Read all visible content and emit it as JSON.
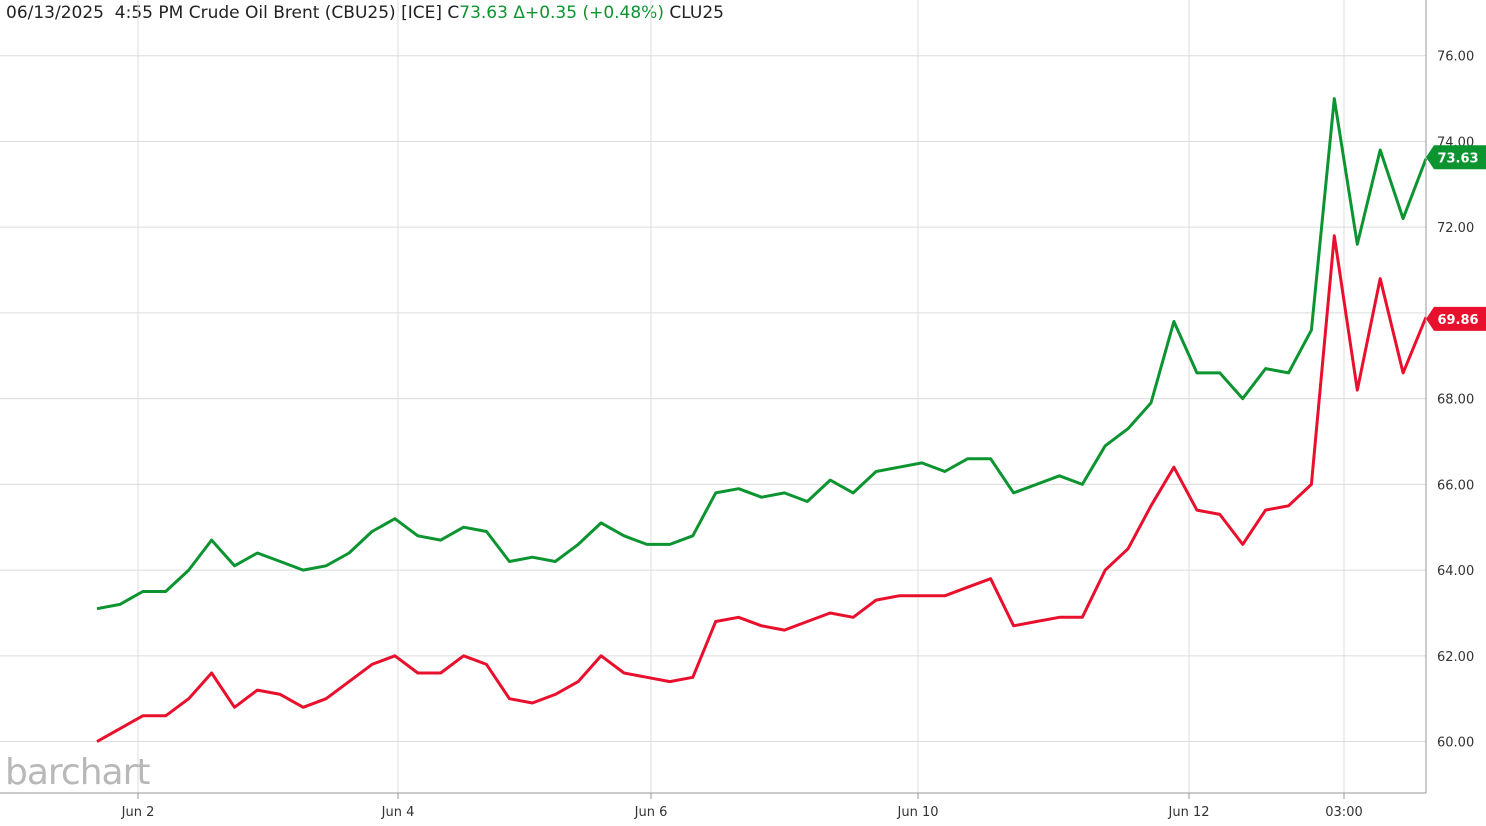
{
  "header": {
    "date": "06/13/2025",
    "time": "4:55 PM",
    "instrument": "Crude Oil Brent (CBU25) [ICE]",
    "close_prefix": "C",
    "close": "73.63",
    "change": "Δ+0.35 (+0.48%)",
    "compare_symbol": "CLU25"
  },
  "logo": "barchart",
  "colors": {
    "series1": "#0c9431",
    "series2": "#e8102d",
    "grid": "#dcdcdc",
    "axis": "#999999"
  },
  "chart_data": {
    "type": "line",
    "ylim": [
      58.8,
      76.6
    ],
    "yticks": [
      "60.00",
      "62.00",
      "64.00",
      "66.00",
      "68.00",
      "70.00",
      "72.00",
      "74.00",
      "76.00"
    ],
    "xtick_labels": [
      "Jun 2",
      "Jun 4",
      "Jun 6",
      "Jun 10",
      "Jun 12",
      "03:00"
    ],
    "x_is_session_index": true,
    "last_value_tags": [
      {
        "series": "CBU25",
        "value": "73.63"
      },
      {
        "series": "CLU25",
        "value": "69.86"
      }
    ],
    "series": [
      {
        "name": "CBU25",
        "points": [
          [
            0,
            63.1
          ],
          [
            1,
            63.2
          ],
          [
            2,
            63.5
          ],
          [
            3,
            63.5
          ],
          [
            4,
            64.0
          ],
          [
            5,
            64.7
          ],
          [
            6,
            64.1
          ],
          [
            7,
            64.4
          ],
          [
            8,
            64.2
          ],
          [
            9,
            64.0
          ],
          [
            10,
            64.1
          ],
          [
            11,
            64.4
          ],
          [
            12,
            64.9
          ],
          [
            13,
            65.2
          ],
          [
            14,
            64.8
          ],
          [
            15,
            64.7
          ],
          [
            16,
            65.0
          ],
          [
            17,
            64.9
          ],
          [
            18,
            64.2
          ],
          [
            19,
            64.3
          ],
          [
            20,
            64.2
          ],
          [
            21,
            64.6
          ],
          [
            22,
            65.1
          ],
          [
            23,
            64.8
          ],
          [
            24,
            64.6
          ],
          [
            25,
            64.6
          ],
          [
            26,
            64.8
          ],
          [
            27,
            65.8
          ],
          [
            28,
            65.9
          ],
          [
            29,
            65.7
          ],
          [
            30,
            65.8
          ],
          [
            31,
            65.6
          ],
          [
            32,
            66.1
          ],
          [
            33,
            65.8
          ],
          [
            34,
            66.3
          ],
          [
            35,
            66.4
          ],
          [
            36,
            66.5
          ],
          [
            37,
            66.3
          ],
          [
            38,
            66.6
          ],
          [
            39,
            66.6
          ],
          [
            40,
            65.8
          ],
          [
            41,
            66.0
          ],
          [
            42,
            66.2
          ],
          [
            43,
            66.0
          ],
          [
            44,
            66.9
          ],
          [
            45,
            67.3
          ],
          [
            46,
            67.9
          ],
          [
            47,
            69.8
          ],
          [
            48,
            68.6
          ],
          [
            49,
            68.6
          ],
          [
            50,
            68.0
          ],
          [
            51,
            68.7
          ],
          [
            52,
            68.6
          ],
          [
            53,
            69.6
          ],
          [
            54,
            75.0
          ],
          [
            55,
            71.6
          ],
          [
            56,
            73.8
          ],
          [
            57,
            72.2
          ],
          [
            58,
            73.6
          ]
        ]
      },
      {
        "name": "CLU25",
        "points": [
          [
            0,
            60.0
          ],
          [
            1,
            60.3
          ],
          [
            2,
            60.6
          ],
          [
            3,
            60.6
          ],
          [
            4,
            61.0
          ],
          [
            5,
            61.6
          ],
          [
            6,
            60.8
          ],
          [
            7,
            61.2
          ],
          [
            8,
            61.1
          ],
          [
            9,
            60.8
          ],
          [
            10,
            61.0
          ],
          [
            11,
            61.4
          ],
          [
            12,
            61.8
          ],
          [
            13,
            62.0
          ],
          [
            14,
            61.6
          ],
          [
            15,
            61.6
          ],
          [
            16,
            62.0
          ],
          [
            17,
            61.8
          ],
          [
            18,
            61.0
          ],
          [
            19,
            60.9
          ],
          [
            20,
            61.1
          ],
          [
            21,
            61.4
          ],
          [
            22,
            62.0
          ],
          [
            23,
            61.6
          ],
          [
            24,
            61.5
          ],
          [
            25,
            61.4
          ],
          [
            26,
            61.5
          ],
          [
            27,
            62.8
          ],
          [
            28,
            62.9
          ],
          [
            29,
            62.7
          ],
          [
            30,
            62.6
          ],
          [
            31,
            62.8
          ],
          [
            32,
            63.0
          ],
          [
            33,
            62.9
          ],
          [
            34,
            63.3
          ],
          [
            35,
            63.4
          ],
          [
            36,
            63.4
          ],
          [
            37,
            63.4
          ],
          [
            38,
            63.6
          ],
          [
            39,
            63.8
          ],
          [
            40,
            62.7
          ],
          [
            41,
            62.8
          ],
          [
            42,
            62.9
          ],
          [
            43,
            62.9
          ],
          [
            44,
            64.0
          ],
          [
            45,
            64.5
          ],
          [
            46,
            65.5
          ],
          [
            47,
            66.4
          ],
          [
            48,
            65.4
          ],
          [
            49,
            65.3
          ],
          [
            50,
            64.6
          ],
          [
            51,
            65.4
          ],
          [
            52,
            65.5
          ],
          [
            53,
            66.0
          ],
          [
            54,
            71.8
          ],
          [
            55,
            68.2
          ],
          [
            56,
            70.8
          ],
          [
            57,
            68.6
          ],
          [
            58,
            69.9
          ]
        ]
      }
    ]
  }
}
